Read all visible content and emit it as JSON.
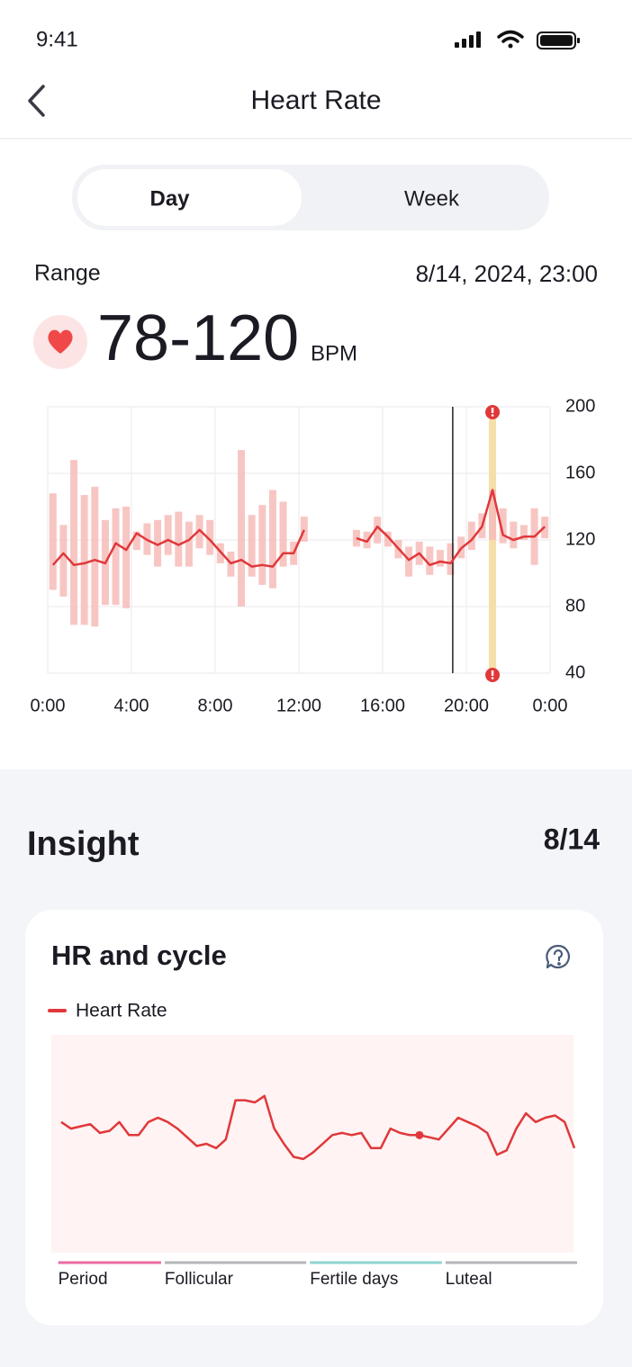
{
  "status_bar": {
    "time": "9:41"
  },
  "header": {
    "title": "Heart Rate"
  },
  "tabs": {
    "items": [
      "Day",
      "Week"
    ],
    "active": 0
  },
  "summary": {
    "label": "Range",
    "datetime": "8/14, 2024, 23:00",
    "value": "78-120",
    "unit": "BPM"
  },
  "insight": {
    "title": "Insight",
    "date": "8/14"
  },
  "chart_data": [
    {
      "type": "range_line",
      "x": [
        0.25,
        0.75,
        1.25,
        1.75,
        2.25,
        2.75,
        3.25,
        3.75,
        4.25,
        4.75,
        5.25,
        5.75,
        6.25,
        6.75,
        7.25,
        7.75,
        8.25,
        8.75,
        9.25,
        9.75,
        10.25,
        10.75,
        11.25,
        11.75,
        12.25,
        12.75,
        13.25,
        13.75,
        14.25,
        14.75,
        15.25,
        15.75,
        16.25,
        16.75,
        17.25,
        17.75,
        18.25,
        18.75,
        19.25,
        19.75,
        20.25,
        20.75,
        21.25,
        21.75,
        22.25,
        22.75,
        23.25,
        23.75
      ],
      "low": [
        90,
        86,
        69,
        69,
        68,
        81,
        81,
        79,
        114,
        111,
        104,
        111,
        104,
        104,
        115,
        111,
        106,
        98,
        80,
        98,
        93,
        91,
        104,
        105,
        119,
        null,
        null,
        null,
        null,
        116,
        115,
        118,
        116,
        109,
        98,
        105,
        99,
        104,
        99,
        109,
        114,
        121,
        120,
        118,
        115,
        120,
        105,
        121
      ],
      "high": [
        148,
        129,
        168,
        147,
        152,
        132,
        139,
        140,
        125,
        130,
        132,
        135,
        137,
        131,
        135,
        132,
        118,
        113,
        174,
        135,
        141,
        150,
        143,
        119,
        134,
        null,
        null,
        null,
        null,
        126,
        125,
        134,
        125,
        120,
        116,
        119,
        116,
        114,
        118,
        122,
        131,
        136,
        150,
        139,
        131,
        129,
        139,
        134
      ],
      "values": [
        105,
        112,
        105,
        106,
        108,
        106,
        118,
        114,
        124,
        120,
        117,
        120,
        117,
        120,
        126,
        120,
        113,
        106,
        108,
        104,
        105,
        104,
        112,
        112,
        126,
        null,
        null,
        null,
        null,
        121,
        119,
        128,
        122,
        115,
        108,
        112,
        105,
        107,
        106,
        115,
        120,
        128,
        150,
        123,
        120,
        122,
        122,
        128
      ],
      "color": "#e0383a",
      "bar_color": "#f6bcb8",
      "xlim": [
        0,
        24
      ],
      "xticks": [
        {
          "value": 0,
          "label": "0:00"
        },
        {
          "value": 4,
          "label": "4:00"
        },
        {
          "value": 8,
          "label": "8:00"
        },
        {
          "value": 12,
          "label": "12:00"
        },
        {
          "value": 16,
          "label": "16:00"
        },
        {
          "value": 20,
          "label": "20:00"
        },
        {
          "value": 24,
          "label": "0:00"
        }
      ],
      "ylim": [
        40,
        200
      ],
      "yticks": [
        40,
        80,
        120,
        160,
        200
      ],
      "grid": true,
      "y_axis_side": "right",
      "cursor_x": 19.35,
      "alert_x": 21.25,
      "alert_color": "#f5dfa8"
    },
    {
      "type": "line",
      "title": "HR and cycle",
      "series": [
        {
          "name": "Heart Rate",
          "color": "#e0383a",
          "values": [
            60,
            57,
            58,
            59,
            55,
            56,
            60,
            54,
            54,
            60,
            62,
            60,
            57,
            53,
            49,
            50,
            48,
            52,
            70,
            70,
            69,
            72,
            57,
            50,
            44,
            43,
            46,
            50,
            54,
            55,
            54,
            55,
            48,
            48,
            57,
            55,
            54,
            54,
            53,
            52,
            57,
            62,
            60,
            58,
            55,
            45,
            47,
            57,
            64,
            60,
            62,
            63,
            60,
            48
          ]
        }
      ],
      "ylim": [
        0,
        100
      ],
      "highlight_index": 37,
      "background": "#fff3f3",
      "phases": [
        {
          "name": "Period",
          "color": "#ec6aa0",
          "start": 0,
          "end": 10
        },
        {
          "name": "Follicular",
          "color": "#b5b5b8",
          "start": 11,
          "end": 25
        },
        {
          "name": "Fertile days",
          "color": "#8fd3cf",
          "start": 26,
          "end": 39
        },
        {
          "name": "Luteal",
          "color": "#b5b5b8",
          "start": 40,
          "end": 53
        }
      ]
    }
  ]
}
